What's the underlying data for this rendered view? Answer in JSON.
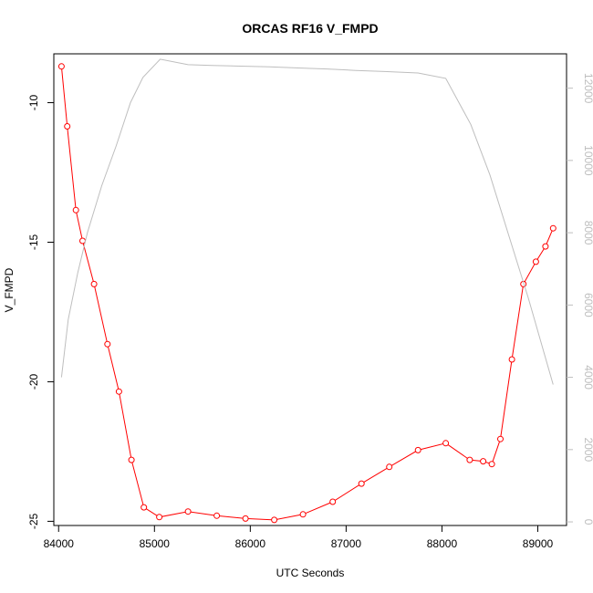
{
  "chart_data": {
    "type": "line",
    "title": "ORCAS RF16 V_FMPD",
    "xlabel": "UTC Seconds",
    "ylabel": "V_FMPD",
    "xlim": [
      83950,
      89300
    ],
    "ylim": [
      -25.15,
      -8.25
    ],
    "y2lim": [
      -100,
      12950
    ],
    "x_ticks": [
      84000,
      85000,
      86000,
      87000,
      88000,
      89000
    ],
    "y_ticks": [
      -25,
      -20,
      -15,
      -10
    ],
    "y2_ticks": [
      0,
      2000,
      4000,
      6000,
      8000,
      10000,
      12000
    ],
    "series": [
      {
        "color": "#ff0000",
        "axis": "left",
        "marker": "open-circle",
        "x": [
          84030,
          84090,
          84180,
          84250,
          84370,
          84510,
          84630,
          84760,
          84890,
          85050,
          85350,
          85650,
          85950,
          86250,
          86550,
          86860,
          87160,
          87450,
          87750,
          88040,
          88290,
          88430,
          88520,
          88610,
          88730,
          88850,
          88980,
          89080,
          89160
        ],
        "values": [
          -8.7,
          -10.85,
          -13.85,
          -14.95,
          -16.5,
          -18.65,
          -20.35,
          -22.8,
          -24.5,
          -24.85,
          -24.65,
          -24.8,
          -24.9,
          -24.95,
          -24.75,
          -24.3,
          -23.65,
          -23.05,
          -22.45,
          -22.2,
          -22.8,
          -22.85,
          -22.95,
          -22.05,
          -19.2,
          -16.5,
          -15.7,
          -15.15,
          -14.5
        ]
      },
      {
        "color": "#bebebe",
        "axis": "right",
        "marker": "none",
        "x": [
          84030,
          84100,
          84200,
          84300,
          84450,
          84600,
          84750,
          84880,
          85060,
          85350,
          85600,
          85900,
          86200,
          86500,
          86800,
          87100,
          87400,
          87750,
          88040,
          88300,
          88500,
          88700,
          88900,
          89160
        ],
        "values": [
          4000,
          5600,
          6900,
          8000,
          9300,
          10400,
          11600,
          12300,
          12800,
          12650,
          12630,
          12610,
          12590,
          12560,
          12530,
          12490,
          12460,
          12420,
          12270,
          11000,
          9600,
          7900,
          6200,
          3800
        ]
      }
    ]
  }
}
